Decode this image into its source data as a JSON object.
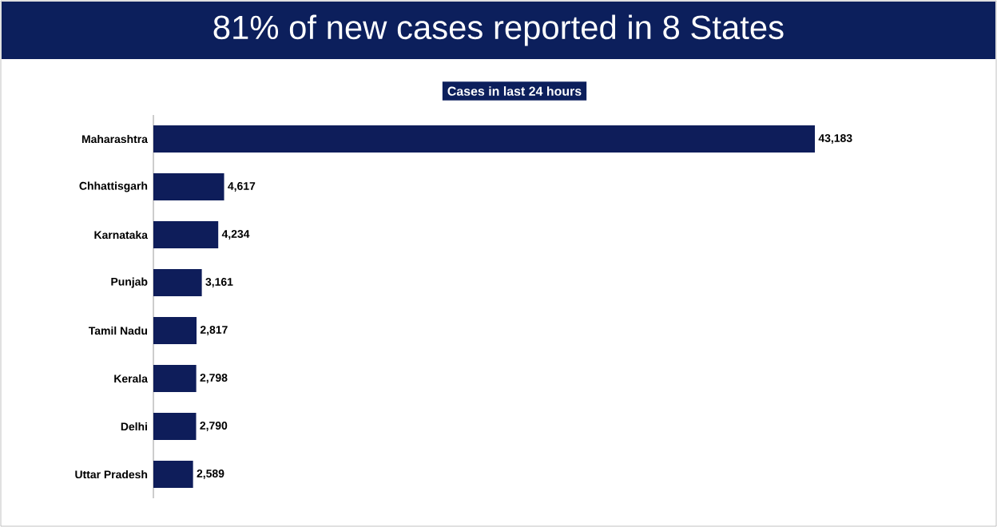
{
  "chart_data": {
    "type": "bar",
    "orientation": "horizontal",
    "title": "81% of new cases reported in 8 States",
    "subtitle": "Cases in last 24 hours",
    "categories": [
      "Maharashtra",
      "Chhattisgarh",
      "Karnataka",
      "Punjab",
      "Tamil Nadu",
      "Kerala",
      "Delhi",
      "Uttar Pradesh"
    ],
    "values": [
      43183,
      4617,
      4234,
      3161,
      2817,
      2798,
      2790,
      2589
    ],
    "value_labels": [
      "43,183",
      "4,617",
      "4,234",
      "3,161",
      "2,817",
      "2,798",
      "2,790",
      "2,589"
    ],
    "color": "#0e1d5a"
  }
}
